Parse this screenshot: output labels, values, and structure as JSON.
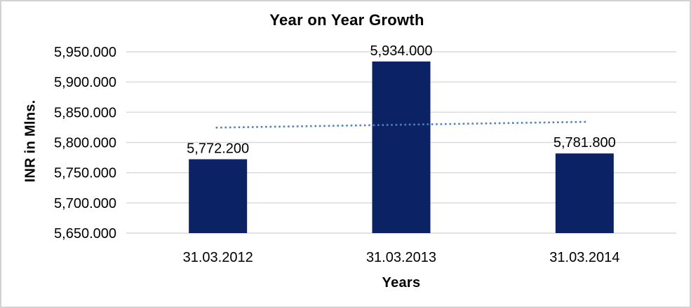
{
  "window": {
    "background_color": "#FFFFFF",
    "border_color": "#D2D2D2"
  },
  "chart_data": {
    "type": "bar",
    "title": "Year on Year Growth",
    "xlabel": "Years",
    "ylabel": "INR in Mlns.",
    "categories": [
      "31.03.2012",
      "31.03.2013",
      "31.03.2014"
    ],
    "values": [
      5772.2,
      5934.0,
      5781.8
    ],
    "data_labels": [
      "5,772.200",
      "5,934.000",
      "5,781.800"
    ],
    "ylim": [
      5650,
      5950
    ],
    "ytick_step": 50,
    "ytick_labels": [
      "5,650.000",
      "5,700.000",
      "5,750.000",
      "5,800.000",
      "5,850.000",
      "5,900.000",
      "5,950.000"
    ],
    "grid": true,
    "legend_position": "none",
    "bar_color": "#0B2265",
    "gridline_color": "#D9D9D9",
    "label_color": "#000000",
    "trendline": {
      "type": "linear",
      "style": "dotted",
      "color": "#4F81BD"
    }
  }
}
